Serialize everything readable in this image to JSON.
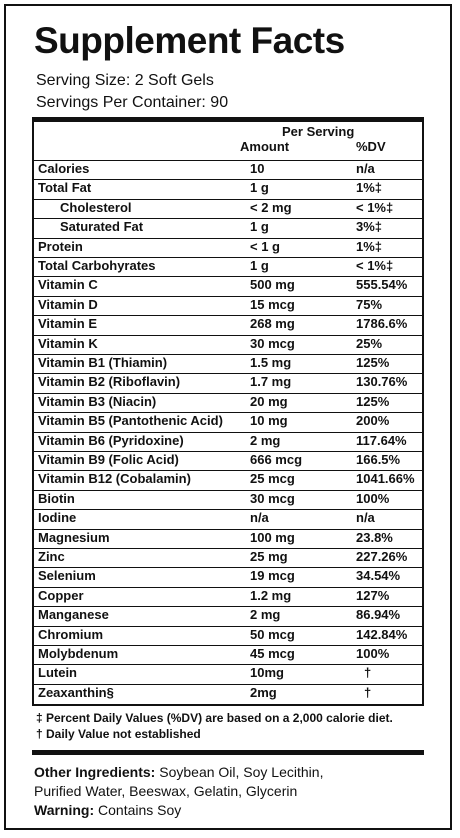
{
  "title": "Supplement Facts",
  "serving_size": "Serving Size: 2 Soft Gels",
  "servings_per_container": "Servings Per Container: 90",
  "header": {
    "per_serving": "Per Serving",
    "amount": "Amount",
    "dv": "%DV"
  },
  "rows": [
    {
      "name": "Calories",
      "amount": "10",
      "dv": "n/a"
    },
    {
      "name": "Total Fat",
      "amount": "1 g",
      "dv": "1%‡"
    },
    {
      "name": "Cholesterol",
      "amount": "< 2 mg",
      "dv": "< 1%‡"
    },
    {
      "name": "Saturated Fat",
      "amount": "1 g",
      "dv": "3%‡"
    },
    {
      "name": "Protein",
      "amount": "< 1 g",
      "dv": "1%‡"
    },
    {
      "name": "Total Carbohyrates",
      "amount": "1 g",
      "dv": "< 1%‡"
    },
    {
      "name": "Vitamin C",
      "amount": "500 mg",
      "dv": "555.54%"
    },
    {
      "name": "Vitamin D",
      "amount": "15 mcg",
      "dv": "75%"
    },
    {
      "name": "Vitamin E",
      "amount": "268 mg",
      "dv": "1786.6%"
    },
    {
      "name": "Vitamin K",
      "amount": "30 mcg",
      "dv": "25%"
    },
    {
      "name": "Vitamin B1 (Thiamin)",
      "amount": "1.5 mg",
      "dv": "125%"
    },
    {
      "name": "Vitamin B2 (Riboflavin)",
      "amount": "1.7 mg",
      "dv": "130.76%"
    },
    {
      "name": "Vitamin B3 (Niacin)",
      "amount": "20 mg",
      "dv": "125%"
    },
    {
      "name": "Vitamin B5 (Pantothenic Acid)",
      "amount": "10 mg",
      "dv": "200%"
    },
    {
      "name": "Vitamin B6 (Pyridoxine)",
      "amount": "2 mg",
      "dv": "117.64%"
    },
    {
      "name": "Vitamin B9 (Folic Acid)",
      "amount": "666 mcg",
      "dv": "166.5%"
    },
    {
      "name": "Vitamin B12 (Cobalamin)",
      "amount": "25 mcg",
      "dv": "1041.66%"
    },
    {
      "name": "Biotin",
      "amount": "30 mcg",
      "dv": "100%"
    },
    {
      "name": "Iodine",
      "amount": "n/a",
      "dv": "n/a"
    },
    {
      "name": "Magnesium",
      "amount": "100 mg",
      "dv": "23.8%"
    },
    {
      "name": "Zinc",
      "amount": "25 mg",
      "dv": "227.26%"
    },
    {
      "name": "Selenium",
      "amount": "19 mcg",
      "dv": "34.54%"
    },
    {
      "name": "Copper",
      "amount": "1.2 mg",
      "dv": "127%"
    },
    {
      "name": "Manganese",
      "amount": "2 mg",
      "dv": "86.94%"
    },
    {
      "name": "Chromium",
      "amount": "50 mcg",
      "dv": "142.84%"
    },
    {
      "name": "Molybdenum",
      "amount": "45 mcg",
      "dv": "100%"
    },
    {
      "name": "Lutein",
      "amount": "10mg",
      "dv": "†"
    },
    {
      "name": "Zeaxanthin§",
      "amount": "2mg",
      "dv": "†"
    }
  ],
  "footnotes": {
    "dv_note": "‡ Percent Daily Values (%DV) are based on a 2,000 calorie diet.",
    "not_established": "† Daily Value not established"
  },
  "ingredients": {
    "label": "Other Ingredients:",
    "line1": "Soybean Oil, Soy Lecithin,",
    "line2": "Purified Water, Beeswax, Gelatin, Glycerin"
  },
  "warning": {
    "label": "Warning:",
    "text": "Contains Soy"
  }
}
